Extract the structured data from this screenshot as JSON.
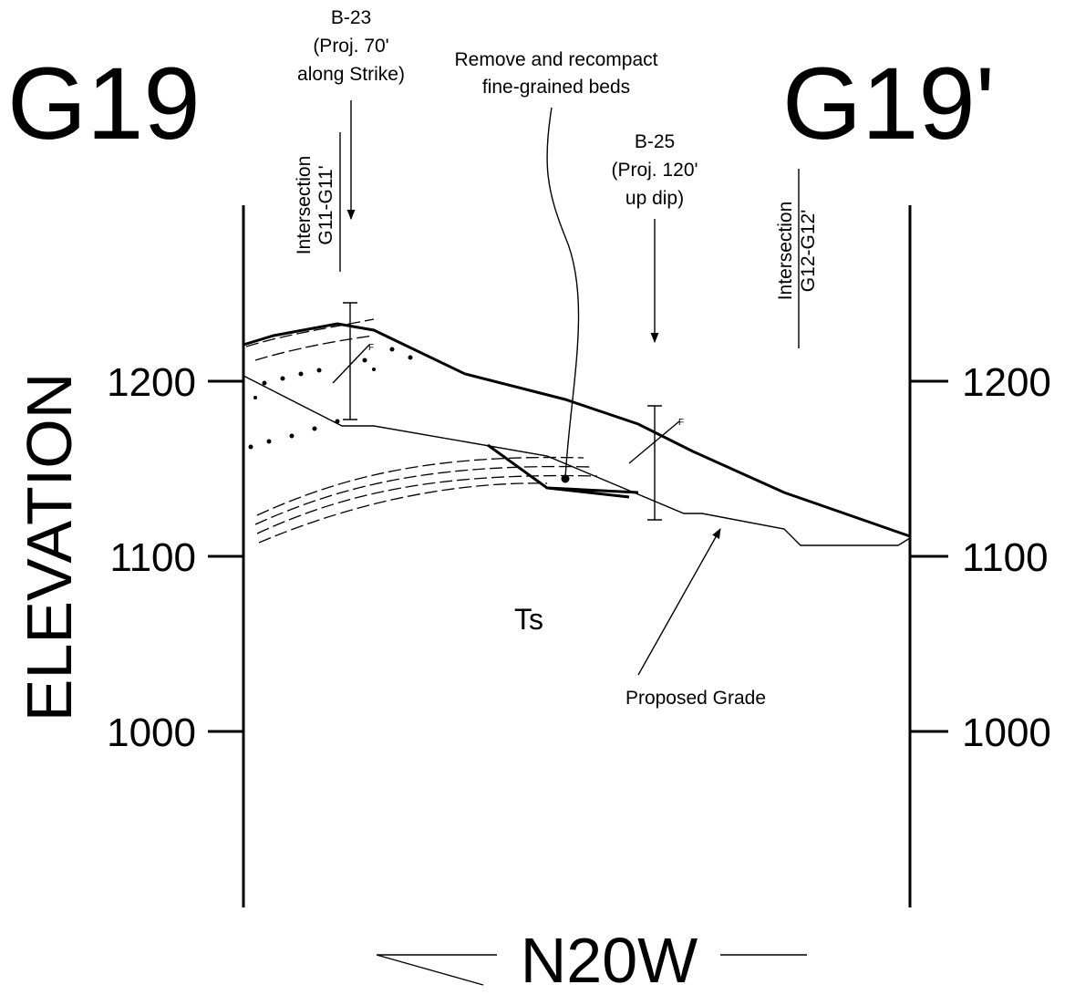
{
  "section": {
    "left_label": "G19",
    "right_label": "G19'",
    "axis_label": "ELEVATION",
    "elevation_ticks": [
      1200,
      1100,
      1000
    ],
    "boring_1": {
      "name": "B-23",
      "line2": "(Proj. 70'",
      "line3": "along Strike)"
    },
    "boring_2": {
      "name": "B-25",
      "line2": "(Proj. 120'",
      "line3": "up dip)"
    },
    "intersection_1": {
      "title": "Intersection",
      "name": "G11-G11'"
    },
    "intersection_2": {
      "title": "Intersection",
      "name": "G12-G12'"
    },
    "note": {
      "line1": "Remove and recompact",
      "line2": "fine-grained beds"
    },
    "unit": "Ts",
    "grade_label": "Proposed Grade",
    "bearing": "N20W"
  }
}
